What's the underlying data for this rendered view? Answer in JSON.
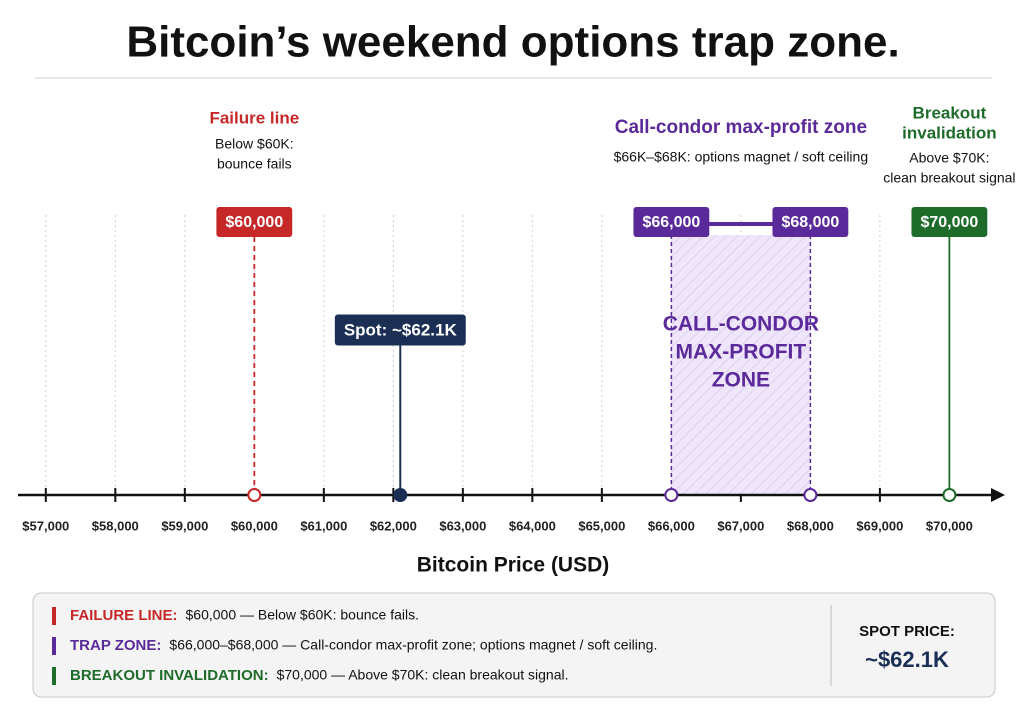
{
  "chart_data": {
    "type": "number-line",
    "title": "Bitcoin’s weekend options trap zone.",
    "axis_label": "Bitcoin Price (USD)",
    "xlim": [
      56600,
      70800
    ],
    "xticks": [
      {
        "value": 57000,
        "label": "$57,000"
      },
      {
        "value": 58000,
        "label": "$58,000"
      },
      {
        "value": 59000,
        "label": "$59,000"
      },
      {
        "value": 60000,
        "label": "$60,000"
      },
      {
        "value": 61000,
        "label": "$61,000"
      },
      {
        "value": 62000,
        "label": "$62,000"
      },
      {
        "value": 63000,
        "label": "$63,000"
      },
      {
        "value": 64000,
        "label": "$64,000"
      },
      {
        "value": 65000,
        "label": "$65,000"
      },
      {
        "value": 66000,
        "label": "$66,000"
      },
      {
        "value": 67000,
        "label": "$67,000"
      },
      {
        "value": 68000,
        "label": "$68,000"
      },
      {
        "value": 69000,
        "label": "$69,000"
      },
      {
        "value": 70000,
        "label": "$70,000"
      }
    ],
    "grid": true,
    "markers": [
      {
        "name": [
          "Failure line"
        ],
        "note": [
          "Below $60K:",
          "bounce fails"
        ],
        "value": 60000,
        "value_label": "$60,000",
        "color": "#c62828",
        "style": "dashed"
      },
      {
        "name": [
          "Breakout",
          "invalidation"
        ],
        "note": [
          "Above $70K:",
          "clean breakout signal"
        ],
        "value": 70000,
        "value_label": "$70,000",
        "color": "#1e6b2a",
        "style": "solid"
      }
    ],
    "spot": {
      "value": 62100,
      "value_label": "Spot: ~$62.1K",
      "color": "#1b2f55"
    },
    "zone": {
      "name": "Call-condor max-profit zone",
      "note": "$66K–$68K: options magnet / soft ceiling",
      "start": 66000,
      "end": 68000,
      "start_label": "$66,000",
      "end_label": "$68,000",
      "inner_label": [
        "CALL-CONDOR",
        "MAX-PROFIT",
        "ZONE"
      ],
      "color": "#5b2a9a"
    },
    "legend": {
      "items": [
        {
          "key": "FAILURE LINE:",
          "text": "$60,000 — Below $60K: bounce fails.",
          "color": "#c62828"
        },
        {
          "key": "TRAP ZONE:",
          "text": "$66,000–$68,000 — Call-condor max-profit zone; options magnet / soft ceiling.",
          "color": "#5b2a9a"
        },
        {
          "key": "BREAKOUT INVALIDATION:",
          "text": "$70,000 — Above $70K: clean breakout signal.",
          "color": "#1e6b2a"
        }
      ],
      "spot_title": "SPOT PRICE:",
      "spot_value": "~$62.1K"
    }
  }
}
